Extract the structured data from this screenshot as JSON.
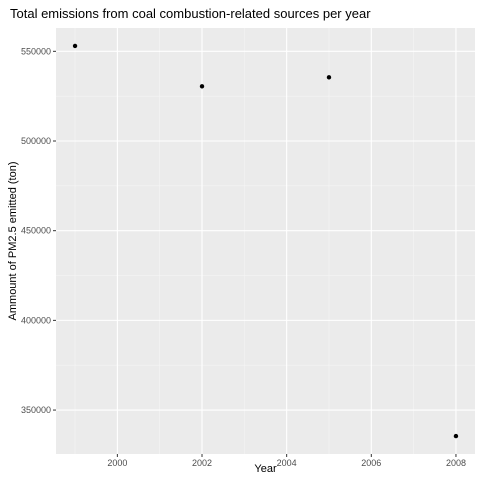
{
  "chart_data": {
    "type": "scatter",
    "title": "Total emissions from coal combustion-related sources per year",
    "xlabel": "Year",
    "ylabel": "Ammount of PM2.5 emitted (ton)",
    "x": [
      1999,
      2002,
      2005,
      2008
    ],
    "y": [
      553000,
      530500,
      535500,
      335500
    ],
    "xlim": [
      1998.55,
      2008.45
    ],
    "ylim": [
      325500,
      563000
    ],
    "x_ticks": [
      2000,
      2002,
      2004,
      2006,
      2008
    ],
    "x_tick_labels": [
      "2000",
      "2002",
      "2004",
      "2006",
      "2008"
    ],
    "y_ticks": [
      350000,
      400000,
      450000,
      500000,
      550000
    ],
    "y_tick_labels": [
      "350000",
      "400000",
      "450000",
      "500000",
      "550000"
    ],
    "grid": true,
    "legend": "none",
    "colors": {
      "panel_background": "#ebebeb",
      "grid_major": "#ffffff",
      "grid_minor": "#f5f5f5",
      "point": "#000000",
      "tick": "#333333",
      "tick_label": "#4d4d4d"
    }
  }
}
